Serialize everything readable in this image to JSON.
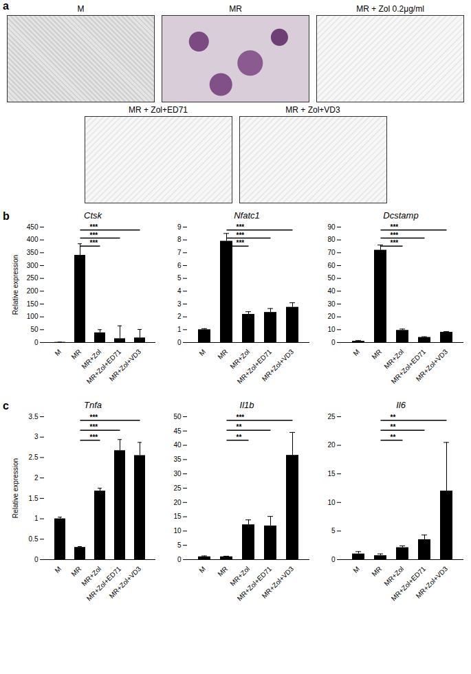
{
  "figure": {
    "panel_labels": [
      "a",
      "b",
      "c"
    ],
    "images": [
      "M",
      "MR",
      "MR + Zol 0.2μg/ml",
      "MR + Zol+ED71",
      "MR + Zol+VD3"
    ]
  },
  "chart_data": [
    {
      "type": "bar",
      "title": "Ctsk",
      "categories": [
        "M",
        "MR",
        "MR+Zol",
        "MR+Zol+ED71",
        "MR+Zol+VD3"
      ],
      "values": [
        1,
        340,
        38,
        15,
        18
      ],
      "errors": [
        0.5,
        45,
        12,
        50,
        33
      ],
      "color": "#000000",
      "ylim": [
        0,
        450
      ],
      "yticks": [
        0,
        50,
        100,
        150,
        200,
        250,
        300,
        350,
        400,
        450
      ],
      "y_label": "Relative expression",
      "significance": [
        {
          "from": "MR",
          "to": "MR+Zol",
          "label": "***"
        },
        {
          "from": "MR",
          "to": "MR+Zol+ED71",
          "label": "***"
        },
        {
          "from": "MR",
          "to": "MR+Zol+VD3",
          "label": "***"
        }
      ]
    },
    {
      "type": "bar",
      "title": "Nfatc1",
      "categories": [
        "M",
        "MR",
        "MR+Zol",
        "MR+Zol+ED71",
        "MR+Zol+VD3"
      ],
      "values": [
        1.0,
        7.9,
        2.2,
        2.35,
        2.75
      ],
      "errors": [
        0.08,
        0.6,
        0.2,
        0.3,
        0.35
      ],
      "color": "#000000",
      "ylim": [
        0,
        9
      ],
      "yticks": [
        0,
        1,
        2,
        3,
        4,
        5,
        6,
        7,
        8,
        9
      ],
      "significance": [
        {
          "from": "MR",
          "to": "MR+Zol",
          "label": "***"
        },
        {
          "from": "MR",
          "to": "MR+Zol+ED71",
          "label": "***"
        },
        {
          "from": "MR",
          "to": "MR+Zol+VD3",
          "label": "***"
        }
      ]
    },
    {
      "type": "bar",
      "title": "Dcstamp",
      "categories": [
        "M",
        "MR",
        "MR+Zol",
        "MR+Zol+ED71",
        "MR+Zol+VD3"
      ],
      "values": [
        1,
        72,
        9.5,
        4,
        8
      ],
      "errors": [
        0.5,
        4,
        1,
        0.5,
        0.5
      ],
      "color": "#000000",
      "ylim": [
        0,
        90
      ],
      "yticks": [
        0,
        10,
        20,
        30,
        40,
        50,
        60,
        70,
        80,
        90
      ],
      "significance": [
        {
          "from": "MR",
          "to": "MR+Zol",
          "label": "***"
        },
        {
          "from": "MR",
          "to": "MR+Zol+ED71",
          "label": "***"
        },
        {
          "from": "MR",
          "to": "MR+Zol+VD3",
          "label": "***"
        }
      ]
    },
    {
      "type": "bar",
      "title": "Tnfa",
      "categories": [
        "M",
        "MR",
        "MR+Zol",
        "MR+Zol+ED71",
        "MR+Zol+VD3"
      ],
      "values": [
        1.0,
        0.3,
        1.68,
        2.67,
        2.55
      ],
      "errors": [
        0.04,
        0.02,
        0.07,
        0.27,
        0.32
      ],
      "color": "#000000",
      "ylim": [
        0,
        3.5
      ],
      "yticks": [
        0,
        0.5,
        1,
        1.5,
        2,
        2.5,
        3,
        3.5
      ],
      "y_label": "Relative expression",
      "significance": [
        {
          "from": "MR",
          "to": "MR+Zol",
          "label": "***"
        },
        {
          "from": "MR",
          "to": "MR+Zol+ED71",
          "label": "***"
        },
        {
          "from": "MR",
          "to": "MR+Zol+VD3",
          "label": "***"
        }
      ]
    },
    {
      "type": "bar",
      "title": "Il1b",
      "categories": [
        "M",
        "MR",
        "MR+Zol",
        "MR+Zol+ED71",
        "MR+Zol+VD3"
      ],
      "values": [
        1,
        1,
        12.2,
        11.8,
        36.5
      ],
      "errors": [
        0.3,
        0.2,
        1.7,
        3.3,
        8
      ],
      "color": "#000000",
      "ylim": [
        0,
        50
      ],
      "yticks": [
        0,
        5,
        10,
        15,
        20,
        25,
        30,
        35,
        40,
        45,
        50
      ],
      "significance": [
        {
          "from": "MR",
          "to": "MR+Zol",
          "label": "**"
        },
        {
          "from": "MR",
          "to": "MR+Zol+ED71",
          "label": "**"
        },
        {
          "from": "MR",
          "to": "MR+Zol+VD3",
          "label": "***"
        }
      ]
    },
    {
      "type": "bar",
      "title": "Il6",
      "categories": [
        "M",
        "MR",
        "MR+Zol",
        "MR+Zol+ED71",
        "MR+Zol+VD3"
      ],
      "values": [
        1,
        0.7,
        2.1,
        3.5,
        12
      ],
      "errors": [
        0.4,
        0.3,
        0.3,
        0.8,
        8.5
      ],
      "color": "#000000",
      "ylim": [
        0,
        25
      ],
      "yticks": [
        0,
        5,
        10,
        15,
        20,
        25
      ],
      "significance": [
        {
          "from": "MR",
          "to": "MR+Zol",
          "label": "**"
        },
        {
          "from": "MR",
          "to": "MR+Zol+ED71",
          "label": "**"
        },
        {
          "from": "MR",
          "to": "MR+Zol+VD3",
          "label": "**"
        }
      ]
    }
  ]
}
